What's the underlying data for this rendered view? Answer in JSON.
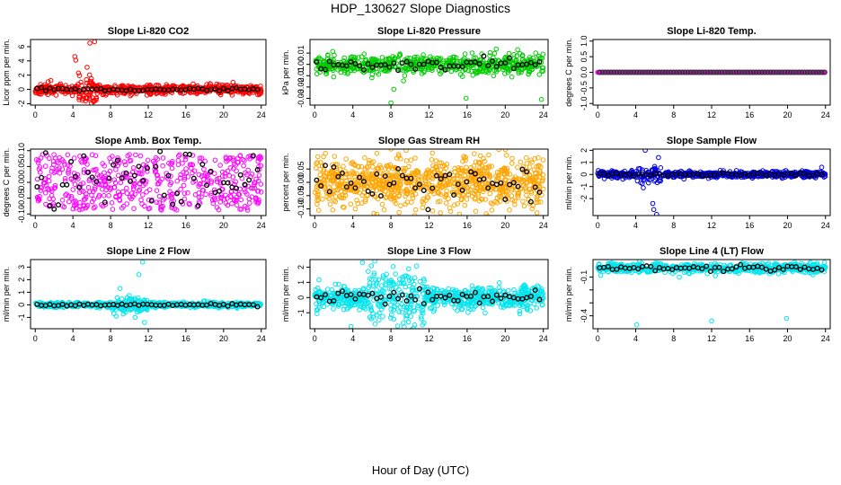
{
  "figure": {
    "title": "HDP_130627  Slope Diagnostics",
    "xlabel": "Hour of Day (UTC)"
  },
  "chart_data": [
    {
      "type": "scatter",
      "title": "Slope Li-820 CO2",
      "ylabel": "Licor ppm per min.",
      "xlim": [
        -0.5,
        24.5
      ],
      "xticks": [
        0,
        4,
        8,
        12,
        16,
        20,
        24
      ],
      "ylim": [
        -2.2,
        7
      ],
      "yticks": [
        -2,
        0,
        2,
        4,
        6
      ],
      "ytick_labels": [
        "-2",
        "0",
        "2",
        "4",
        "6"
      ],
      "color": "#ff0000",
      "seed": 11,
      "n": 650,
      "noise": 0.35,
      "bumps": [
        [
          4.6,
          6.5,
          0.9
        ]
      ],
      "outliers": [
        [
          4.2,
          4.6
        ],
        [
          4.3,
          4.1
        ],
        [
          5.8,
          6.5
        ],
        [
          6.3,
          6.7
        ],
        [
          6.2,
          -1.6
        ],
        [
          4.6,
          2.3
        ],
        [
          5.5,
          3.1
        ],
        [
          6.5,
          -1.2
        ],
        [
          5.2,
          -0.9
        ]
      ],
      "black_noise": 0.12
    },
    {
      "type": "scatter",
      "title": "Slope Li-820 Pressure",
      "ylabel": "kPa per min.",
      "xlim": [
        -0.5,
        24.5
      ],
      "xticks": [
        0,
        4,
        8,
        12,
        16,
        20,
        24
      ],
      "ylim": [
        -0.036,
        0.022
      ],
      "yticks": [
        -0.03,
        -0.02,
        -0.01,
        0,
        0.01
      ],
      "ytick_labels": [
        "-0.03",
        "-0.02",
        "-0.01",
        "0.00",
        "0.01"
      ],
      "color": "#00cc00",
      "seed": 23,
      "n": 650,
      "noise": 0.004,
      "bumps": [
        [
          10,
          14,
          0.006
        ]
      ],
      "outliers": [
        [
          8.0,
          -0.034
        ],
        [
          15.9,
          -0.03
        ],
        [
          23.8,
          -0.031
        ],
        [
          8.3,
          -0.022
        ],
        [
          23.2,
          0.01
        ],
        [
          21.3,
          0.013
        ]
      ],
      "black_noise": 0.0025
    },
    {
      "type": "scatter",
      "title": "Slope Li-820 Temp.",
      "ylabel": "degrees C per min.",
      "xlim": [
        -0.5,
        24.5
      ],
      "xticks": [
        0,
        4,
        8,
        12,
        16,
        20,
        24
      ],
      "ylim": [
        -1.05,
        1.05
      ],
      "yticks": [
        -1,
        -0.5,
        0,
        0.5,
        1
      ],
      "ytick_labels": [
        "-1.0",
        "-0.5",
        "0.0",
        "0.5",
        "1.0"
      ],
      "color": "#ff00ff",
      "seed": 37,
      "n": 420,
      "noise": 0.0,
      "bumps": [],
      "outliers": [],
      "black_noise": 0.0,
      "dark_color": "#333333"
    },
    {
      "type": "scatter",
      "title": "Slope Amb. Box Temp.",
      "ylabel": "degrees C per min.",
      "xlim": [
        -0.5,
        24.5
      ],
      "xticks": [
        0,
        4,
        8,
        12,
        16,
        20,
        24
      ],
      "ylim": [
        -0.105,
        0.105
      ],
      "yticks": [
        -0.1,
        -0.05,
        0,
        0.05,
        0.1
      ],
      "ytick_labels": [
        "-0.10",
        "-0.05",
        "0.00",
        "0.05",
        "0.10"
      ],
      "color": "#ff00ff",
      "seed": 41,
      "n": 520,
      "noise": 0.055,
      "uniform": true,
      "bumps": [],
      "outliers": [],
      "black_noise": 0.05
    },
    {
      "type": "scatter",
      "title": "Slope Gas Stream RH",
      "ylabel": "percent per min.",
      "xlim": [
        -0.5,
        24.5
      ],
      "xticks": [
        0,
        4,
        8,
        12,
        16,
        20,
        24
      ],
      "ylim": [
        -0.125,
        0.125
      ],
      "yticks": [
        -0.1,
        -0.05,
        0,
        0.05
      ],
      "ytick_labels": [
        "-0.10",
        "-0.05",
        "0.00",
        "0.05"
      ],
      "color": "#ffa500",
      "seed": 53,
      "n": 900,
      "noise": 0.045,
      "bumps": [],
      "outliers": [
        [
          6.5,
          -0.12
        ],
        [
          10.5,
          -0.125
        ],
        [
          13.2,
          -0.115
        ],
        [
          8.8,
          0.105
        ],
        [
          9.6,
          0.12
        ],
        [
          17.4,
          0.1
        ]
      ],
      "black_noise": 0.035,
      "hatch": true
    },
    {
      "type": "scatter",
      "title": "Slope Sample Flow",
      "ylabel": "ml/min per min.",
      "xlim": [
        -0.5,
        24.5
      ],
      "xticks": [
        0,
        4,
        8,
        12,
        16,
        20,
        24
      ],
      "ylim": [
        -3.4,
        2.1
      ],
      "yticks": [
        -2,
        -1,
        0,
        1,
        2
      ],
      "ytick_labels": [
        "-2",
        "-1",
        "0",
        "1",
        "2"
      ],
      "color": "#0000dd",
      "seed": 67,
      "n": 650,
      "noise": 0.12,
      "bumps": [
        [
          4,
          7,
          0.5
        ]
      ],
      "outliers": [
        [
          5.0,
          2.0
        ],
        [
          6.4,
          1.4
        ],
        [
          5.8,
          -2.4
        ],
        [
          5.9,
          -2.9
        ],
        [
          6.2,
          -3.3
        ],
        [
          4.8,
          -1.1
        ],
        [
          16.3,
          -0.3
        ],
        [
          23.6,
          0.6
        ]
      ],
      "black_noise": 0.07
    },
    {
      "type": "scatter",
      "title": "Slope Line 2 Flow",
      "ylabel": "ml/min per min.",
      "xlim": [
        -0.5,
        24.5
      ],
      "xticks": [
        0,
        4,
        8,
        12,
        16,
        20,
        24
      ],
      "ylim": [
        -1.9,
        3.6
      ],
      "yticks": [
        -1,
        0,
        1,
        2,
        3
      ],
      "ytick_labels": [
        "-1",
        "0",
        "1",
        "2",
        "3"
      ],
      "color": "#00e5ee",
      "seed": 79,
      "n": 650,
      "noise": 0.1,
      "bumps": [
        [
          8,
          12,
          0.6
        ]
      ],
      "outliers": [
        [
          11.4,
          3.4
        ],
        [
          11.0,
          2.4
        ],
        [
          9.0,
          1.3
        ],
        [
          10.6,
          -1.0
        ],
        [
          11.6,
          -1.4
        ],
        [
          8.6,
          -0.9
        ]
      ],
      "black_noise": 0.06
    },
    {
      "type": "scatter",
      "title": "Slope Line 3 Flow",
      "ylabel": "ml/min per min.",
      "xlim": [
        -0.5,
        24.5
      ],
      "xticks": [
        0,
        4,
        8,
        12,
        16,
        20,
        24
      ],
      "ylim": [
        -2.05,
        2.5
      ],
      "yticks": [
        -1,
        0,
        1,
        2
      ],
      "ytick_labels": [
        "-1",
        "0",
        "1",
        "2"
      ],
      "color": "#00e5ee",
      "seed": 97,
      "n": 800,
      "noise": 0.38,
      "bumps": [
        [
          5.5,
          11.5,
          0.5
        ]
      ],
      "outliers": [
        [
          5.0,
          2.3
        ],
        [
          6.3,
          2.4
        ],
        [
          7.2,
          1.3
        ],
        [
          3.8,
          -1.9
        ],
        [
          10.5,
          -1.8
        ],
        [
          11.2,
          -1.4
        ],
        [
          9.7,
          -1.2
        ]
      ],
      "black_noise": 0.25
    },
    {
      "type": "scatter",
      "title": "Slope Line 4 (LT) Flow",
      "ylabel": "ml/min per min.",
      "xlim": [
        -0.5,
        24.5
      ],
      "xticks": [
        0,
        4,
        8,
        12,
        16,
        20,
        24
      ],
      "ylim": [
        -0.5,
        0.035
      ],
      "yticks": [
        -0.4,
        -0.3,
        -0.2,
        -0.1
      ],
      "ytick_labels": [
        "-0.4",
        "",
        "",
        "-0.1"
      ],
      "color": "#00e5ee",
      "seed": 113,
      "n": 650,
      "noise": 0.018,
      "center": -0.03,
      "bumps": [],
      "outliers": [
        [
          4.1,
          -0.47
        ],
        [
          12.0,
          -0.44
        ],
        [
          19.9,
          -0.42
        ],
        [
          8.6,
          -0.1
        ],
        [
          12.4,
          -0.09
        ]
      ],
      "black_noise": 0.012
    }
  ]
}
